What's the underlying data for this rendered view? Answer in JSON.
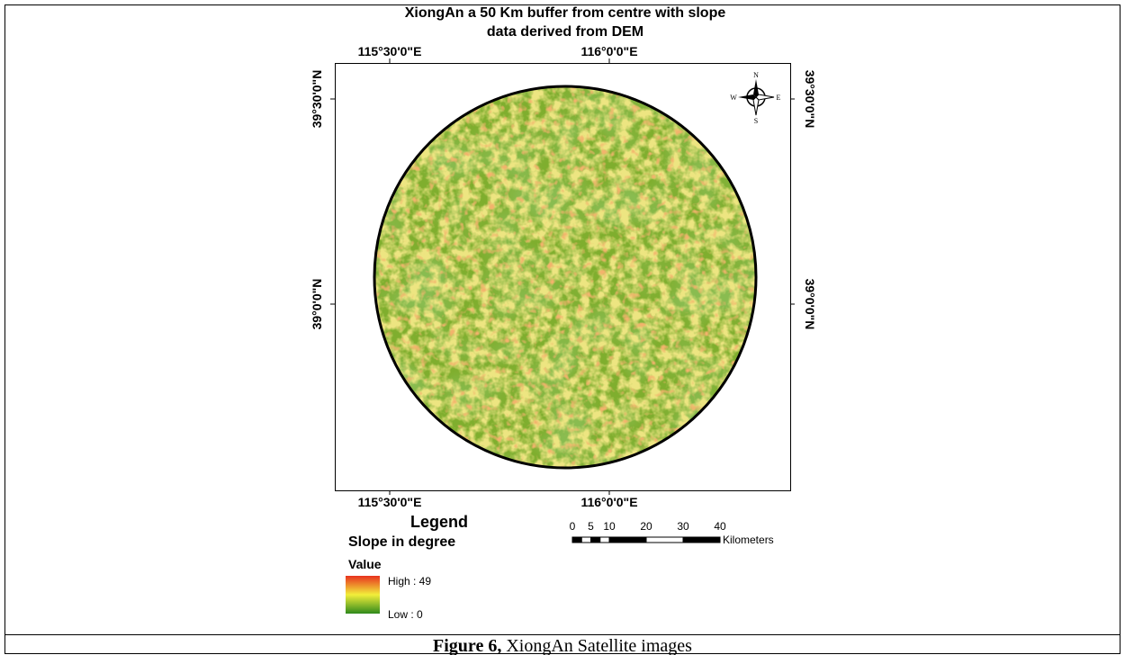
{
  "title": {
    "lines": [
      "XiongAn a 50 Km buffer from centre with slope",
      "data derived from DEM"
    ]
  },
  "longitude_labels": {
    "top": [
      "115°30'0\"E",
      "116°0'0\"E"
    ],
    "bottom": [
      "115°30'0\"E",
      "116°0'0\"E"
    ]
  },
  "latitude_labels": {
    "left": [
      "39°30'0\"N",
      "39°0'0\"N"
    ],
    "right": [
      "39°30'0\"N",
      "39°0'0\"N"
    ]
  },
  "compass": {
    "n": "N",
    "s": "S",
    "e": "E",
    "w": "W"
  },
  "legend": {
    "heading": "Legend",
    "title": "Slope in degree",
    "field": "Value",
    "high": "High : 49",
    "low": "Low : 0"
  },
  "scale_bar": {
    "ticks": [
      0,
      5,
      10,
      20,
      30,
      40
    ],
    "unit": "Kilometers"
  },
  "caption": {
    "label": "Figure 6,",
    "text": " XiongAn Satellite images"
  }
}
